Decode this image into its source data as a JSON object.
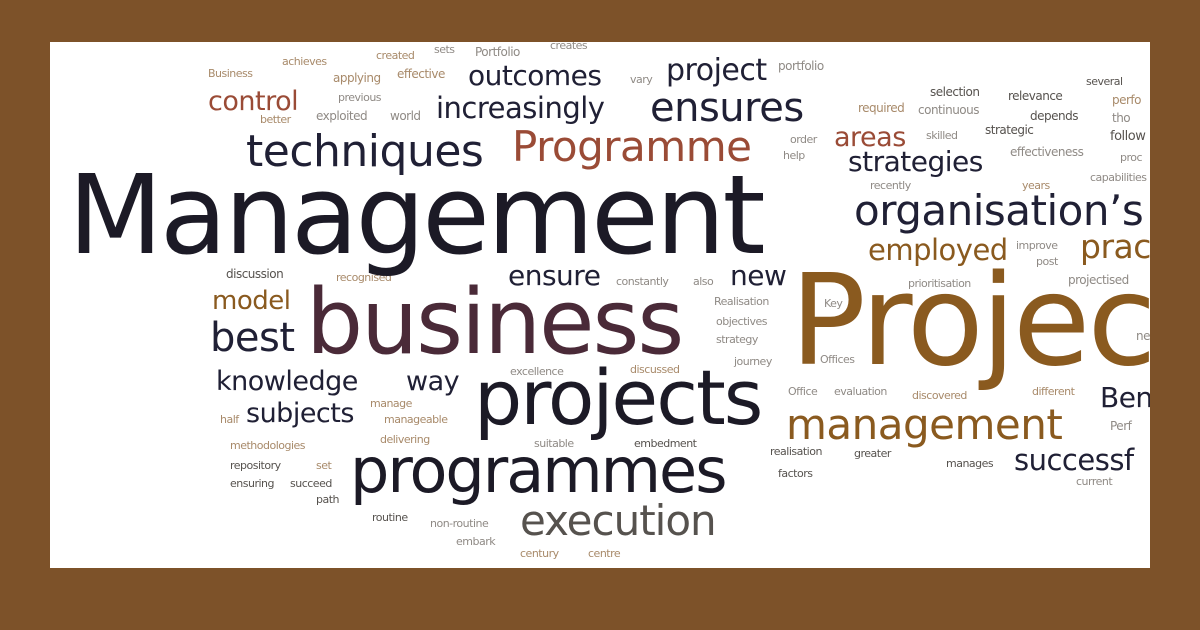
{
  "colors": {
    "frame": "#7d5229",
    "card": "#ffffff",
    "dark": "#1c1a26",
    "brown": "#8a5a1f",
    "rust": "#9a4b36",
    "grey": "#8f8a85"
  },
  "words": {
    "management_large": "Management",
    "projec": "Projec",
    "business": "business",
    "projects": "projects",
    "programmes": "programmes",
    "programme": "Programme",
    "execution": "execution",
    "organisations": "organisation’s",
    "management_small": "management",
    "techniques": "techniques",
    "ensures": "ensures",
    "increasingly": "increasingly",
    "outcomes": "outcomes",
    "project": "project",
    "control": "control",
    "strategies": "strategies",
    "areas": "areas",
    "employed": "employed",
    "pract": "pract",
    "best": "best",
    "model": "model",
    "knowledge": "knowledge",
    "subjects": "subjects",
    "way": "way",
    "ensure": "ensure",
    "new": "new",
    "successf": "successf",
    "ben": "Ben",
    "business_small": "Business",
    "achieves": "achieves",
    "created": "created",
    "sets": "sets",
    "portfolio_cap": "Portfolio",
    "creates": "creates",
    "applying": "applying",
    "effective": "effective",
    "vary": "vary",
    "portfolio": "portfolio",
    "previous": "previous",
    "better": "better",
    "exploited": "exploited",
    "world": "world",
    "selection": "selection",
    "relevance": "relevance",
    "several": "several",
    "perfo": "perfo",
    "required": "required",
    "continuous": "continuous",
    "depends": "depends",
    "tho": "tho",
    "order": "order",
    "help": "help",
    "skilled": "skilled",
    "strategic": "strategic",
    "follow": "follow",
    "effectiveness": "effectiveness",
    "proc": "proc",
    "recently": "recently",
    "years": "years",
    "capabilities": "capabilities",
    "improve": "improve",
    "post": "post",
    "discussion": "discussion",
    "recognised": "recognised",
    "constantly": "constantly",
    "also": "also",
    "prioritisation": "prioritisation",
    "projectised": "projectised",
    "realisation_cap": "Realisation",
    "key": "Key",
    "objectives": "objectives",
    "strategy": "strategy",
    "journey": "journey",
    "offices": "Offices",
    "excellence": "excellence",
    "discussed": "discussed",
    "office": "Office",
    "evaluation": "evaluation",
    "discovered": "discovered",
    "different": "different",
    "manage": "manage",
    "half": "half",
    "manageable": "manageable",
    "perf": "Perf",
    "methodologies": "methodologies",
    "delivering": "delivering",
    "suitable": "suitable",
    "embedment": "embedment",
    "realisation": "realisation",
    "greater": "greater",
    "repository": "repository",
    "set": "set",
    "factors": "factors",
    "manages": "manages",
    "ensuring": "ensuring",
    "succeed": "succeed",
    "current": "current",
    "path": "path",
    "routine": "routine",
    "non_routine": "non-routine",
    "embark": "embark",
    "century": "century",
    "centre": "centre",
    "ne": "ne"
  }
}
